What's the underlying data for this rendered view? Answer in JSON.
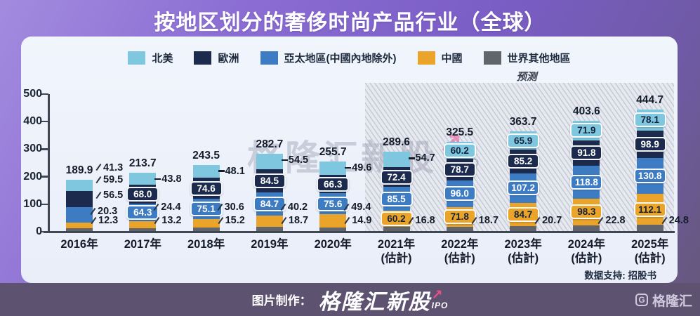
{
  "title": "按地区划分的奢侈时尚产品行业（全球）",
  "source_note": "数据支持: 招股书",
  "watermark": {
    "text": "格隆汇新股",
    "arrow": "↗",
    "suffix": "IPO"
  },
  "footer": {
    "credit_prefix": "图片制作：",
    "brand": "格隆汇新股",
    "brand_arrow": "↗",
    "brand_suffix": "IPO",
    "logo_g": "G",
    "logo_text": "格隆汇"
  },
  "chart_data": {
    "type": "bar",
    "stacked": true,
    "title": "按地区划分的奢侈时尚产品行业（全球）",
    "xlabel": "",
    "ylabel": "",
    "ylim": [
      0,
      500
    ],
    "yticks": [
      0,
      100,
      200,
      300,
      400,
      500
    ],
    "grid": false,
    "legend_position": "top",
    "forecast_label": "预测",
    "forecast_start_index": 5,
    "categories": [
      "2016年",
      "2017年",
      "2018年",
      "2019年",
      "2020年",
      "2021年",
      "2022年",
      "2023年",
      "2024年",
      "2025年"
    ],
    "category_sublabels": [
      "",
      "",
      "",
      "",
      "",
      "(估計)",
      "(估計)",
      "(估計)",
      "(估計)",
      "(估計)"
    ],
    "totals": [
      189.9,
      213.7,
      243.5,
      282.7,
      255.7,
      289.6,
      325.5,
      363.7,
      403.6,
      444.7
    ],
    "series": [
      {
        "name": "北美",
        "key": "north-america",
        "color": "#7fc6df",
        "text_color": "#15223b",
        "values": [
          41.3,
          43.8,
          48.1,
          54.5,
          49.6,
          54.7,
          60.2,
          65.9,
          71.9,
          78.1
        ],
        "label_inside": [
          false,
          false,
          false,
          false,
          false,
          false,
          true,
          true,
          true,
          true
        ]
      },
      {
        "name": "歐洲",
        "key": "europe",
        "color": "#1c2a4d",
        "text_color": "#ffffff",
        "values": [
          59.5,
          68.0,
          74.6,
          84.5,
          66.3,
          72.4,
          78.7,
          85.2,
          91.8,
          98.9
        ],
        "label_inside": [
          false,
          true,
          true,
          true,
          true,
          true,
          true,
          true,
          true,
          true
        ]
      },
      {
        "name": "亞太地區(中國內地除外)",
        "key": "asia-pacific-ex-china",
        "color": "#3d7cc3",
        "text_color": "#ffffff",
        "values": [
          56.5,
          64.3,
          75.1,
          84.7,
          75.6,
          85.5,
          96.0,
          107.2,
          118.8,
          130.8
        ],
        "label_inside": [
          false,
          true,
          true,
          true,
          true,
          true,
          true,
          true,
          true,
          true
        ]
      },
      {
        "name": "中國",
        "key": "china",
        "color": "#eaa42a",
        "text_color": "#15223b",
        "values": [
          20.3,
          24.4,
          30.6,
          40.2,
          49.4,
          60.2,
          71.8,
          84.7,
          98.3,
          112.1
        ],
        "label_inside": [
          false,
          false,
          false,
          false,
          false,
          true,
          true,
          true,
          true,
          true
        ]
      },
      {
        "name": "世界其他地區",
        "key": "rest-of-world",
        "color": "#61656b",
        "text_color": "#15223b",
        "values": [
          12.3,
          13.2,
          15.2,
          18.7,
          14.9,
          16.8,
          18.7,
          20.7,
          22.8,
          24.8
        ],
        "label_inside": [
          false,
          false,
          false,
          false,
          false,
          false,
          false,
          false,
          false,
          false
        ]
      }
    ]
  }
}
